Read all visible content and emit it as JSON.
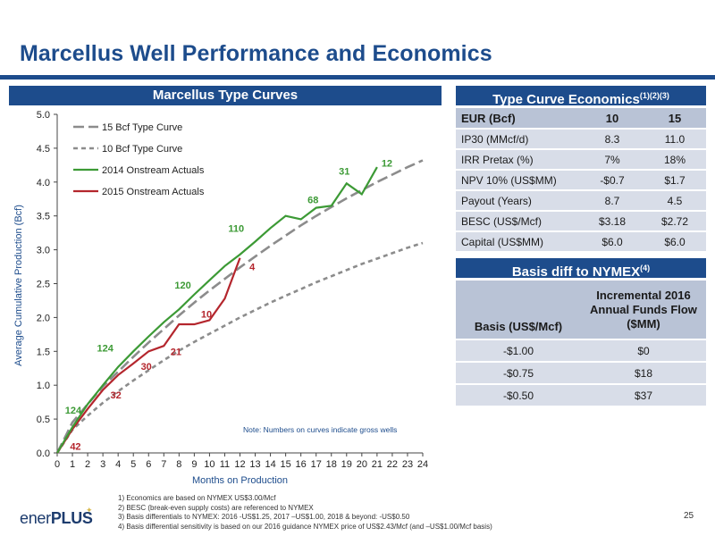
{
  "page": {
    "title": "Marcellus Well Performance and Economics",
    "page_number": "25"
  },
  "logo": {
    "prefix": "ener",
    "suffix": "PLUS"
  },
  "chart_panel": {
    "header": "Marcellus Type Curves"
  },
  "chart_data": {
    "type": "line",
    "xlabel": "Months on Production",
    "ylabel": "Average Cumulative Production (Bcf)",
    "xlim": [
      0,
      24
    ],
    "ylim": [
      0,
      5
    ],
    "x_ticks": [
      "0",
      "1",
      "2",
      "3",
      "4",
      "5",
      "6",
      "7",
      "8",
      "9",
      "10",
      "11",
      "12",
      "13",
      "14",
      "15",
      "16",
      "17",
      "18",
      "19",
      "20",
      "21",
      "22",
      "23",
      "24"
    ],
    "y_ticks": [
      "0.0",
      "0.5",
      "1.0",
      "1.5",
      "2.0",
      "2.5",
      "3.0",
      "3.5",
      "4.0",
      "4.5",
      "5.0"
    ],
    "legend_position": "top-left",
    "note": "Note: Numbers on curves indicate gross wells",
    "series": [
      {
        "name": "15 Bcf Type Curve",
        "color": "#8c8c8c",
        "style": "long-dash",
        "x": [
          0,
          1,
          2,
          3,
          4,
          5,
          6,
          7,
          8,
          9,
          10,
          11,
          12,
          13,
          14,
          15,
          16,
          17,
          18,
          19,
          20,
          21,
          22,
          23,
          24
        ],
        "y": [
          0,
          0.45,
          0.72,
          0.98,
          1.2,
          1.42,
          1.63,
          1.83,
          2.03,
          2.22,
          2.4,
          2.57,
          2.74,
          2.9,
          3.06,
          3.21,
          3.36,
          3.5,
          3.63,
          3.76,
          3.88,
          4.0,
          4.11,
          4.22,
          4.32
        ]
      },
      {
        "name": "10 Bcf Type Curve",
        "color": "#8c8c8c",
        "style": "short-dash",
        "x": [
          0,
          1,
          2,
          3,
          4,
          5,
          6,
          7,
          8,
          9,
          10,
          11,
          12,
          13,
          14,
          15,
          16,
          17,
          18,
          19,
          20,
          21,
          22,
          23,
          24
        ],
        "y": [
          0,
          0.34,
          0.55,
          0.74,
          0.91,
          1.07,
          1.22,
          1.37,
          1.51,
          1.64,
          1.76,
          1.88,
          2.0,
          2.11,
          2.22,
          2.32,
          2.42,
          2.52,
          2.61,
          2.7,
          2.79,
          2.87,
          2.95,
          3.03,
          3.1
        ]
      },
      {
        "name": "2014 Onstream Actuals",
        "color": "#3c9a35",
        "style": "solid",
        "x": [
          0,
          1,
          2,
          3,
          4,
          5,
          6,
          7,
          8,
          9,
          10,
          11,
          12,
          13,
          14,
          15,
          16,
          17,
          18,
          19,
          20,
          21
        ],
        "y": [
          0,
          0.38,
          0.72,
          1.0,
          1.27,
          1.5,
          1.72,
          1.93,
          2.12,
          2.34,
          2.55,
          2.76,
          2.93,
          3.12,
          3.32,
          3.5,
          3.45,
          3.62,
          3.65,
          3.98,
          3.82,
          4.22
        ]
      },
      {
        "name": "2015 Onstream Actuals",
        "color": "#b4262d",
        "style": "solid",
        "x": [
          0,
          1,
          2,
          3,
          4,
          5,
          6,
          7,
          8,
          9,
          10,
          11,
          12
        ],
        "y": [
          0,
          0.35,
          0.65,
          0.93,
          1.15,
          1.32,
          1.5,
          1.58,
          1.9,
          1.9,
          1.96,
          2.28,
          2.88
        ]
      }
    ],
    "annotations": [
      {
        "text": "124",
        "series": "2014 Onstream Actuals",
        "x": 1.05,
        "y": 0.63
      },
      {
        "text": "124",
        "series": "2014 Onstream Actuals",
        "x": 3.15,
        "y": 1.55
      },
      {
        "text": "120",
        "series": "2014 Onstream Actuals",
        "x": 8.25,
        "y": 2.48
      },
      {
        "text": "110",
        "series": "2014 Onstream Actuals",
        "x": 11.75,
        "y": 3.32
      },
      {
        "text": "68",
        "series": "2014 Onstream Actuals",
        "x": 16.8,
        "y": 3.74
      },
      {
        "text": "31",
        "series": "2014 Onstream Actuals",
        "x": 18.85,
        "y": 4.16
      },
      {
        "text": "12",
        "series": "2014 Onstream Actuals",
        "x": 21.65,
        "y": 4.28
      },
      {
        "text": "42",
        "series": "2015 Onstream Actuals",
        "x": 1.2,
        "y": 0.1
      },
      {
        "text": "32",
        "series": "2015 Onstream Actuals",
        "x": 3.85,
        "y": 0.86
      },
      {
        "text": "30",
        "series": "2015 Onstream Actuals",
        "x": 5.85,
        "y": 1.28
      },
      {
        "text": "21",
        "series": "2015 Onstream Actuals",
        "x": 7.8,
        "y": 1.5
      },
      {
        "text": "10",
        "series": "2015 Onstream Actuals",
        "x": 9.8,
        "y": 2.05
      },
      {
        "text": "4",
        "series": "2015 Onstream Actuals",
        "x": 12.8,
        "y": 2.75
      }
    ]
  },
  "economics": {
    "header": "Type Curve Economics",
    "header_sup": "(1)(2)(3)",
    "columns": [
      "EUR (Bcf)",
      "10",
      "15"
    ],
    "rows": [
      [
        "IP30 (MMcf/d)",
        "8.3",
        "11.0"
      ],
      [
        "IRR Pretax (%)",
        "7%",
        "18%"
      ],
      [
        "NPV 10% (US$MM)",
        "-$0.7",
        "$1.7"
      ],
      [
        "Payout (Years)",
        "8.7",
        "4.5"
      ],
      [
        "BESC (US$/Mcf)",
        "$3.18",
        "$2.72"
      ],
      [
        "Capital (US$MM)",
        "$6.0",
        "$6.0"
      ]
    ]
  },
  "basis": {
    "header": "Basis diff to NYMEX",
    "header_sup": "(4)",
    "col1": "Basis (US$/Mcf)",
    "col2_lines": [
      "Incremental 2016",
      "Annual Funds Flow",
      "($MM)"
    ],
    "rows": [
      [
        "-$1.00",
        "$0"
      ],
      [
        "-$0.75",
        "$18"
      ],
      [
        "-$0.50",
        "$37"
      ]
    ]
  },
  "footnotes": [
    "1)    Economics are based on NYMEX US$3.00/Mcf",
    "2)    BESC (break-even supply costs) are referenced to NYMEX",
    "3)    Basis differentials to NYMEX: 2016 -US$1.25, 2017 –US$1.00, 2018 & beyond: -US$0.50",
    "4)    Basis differential sensitivity is based on our 2016 guidance NYMEX price of US$2.43/Mcf (and –US$1.00/Mcf basis)"
  ]
}
